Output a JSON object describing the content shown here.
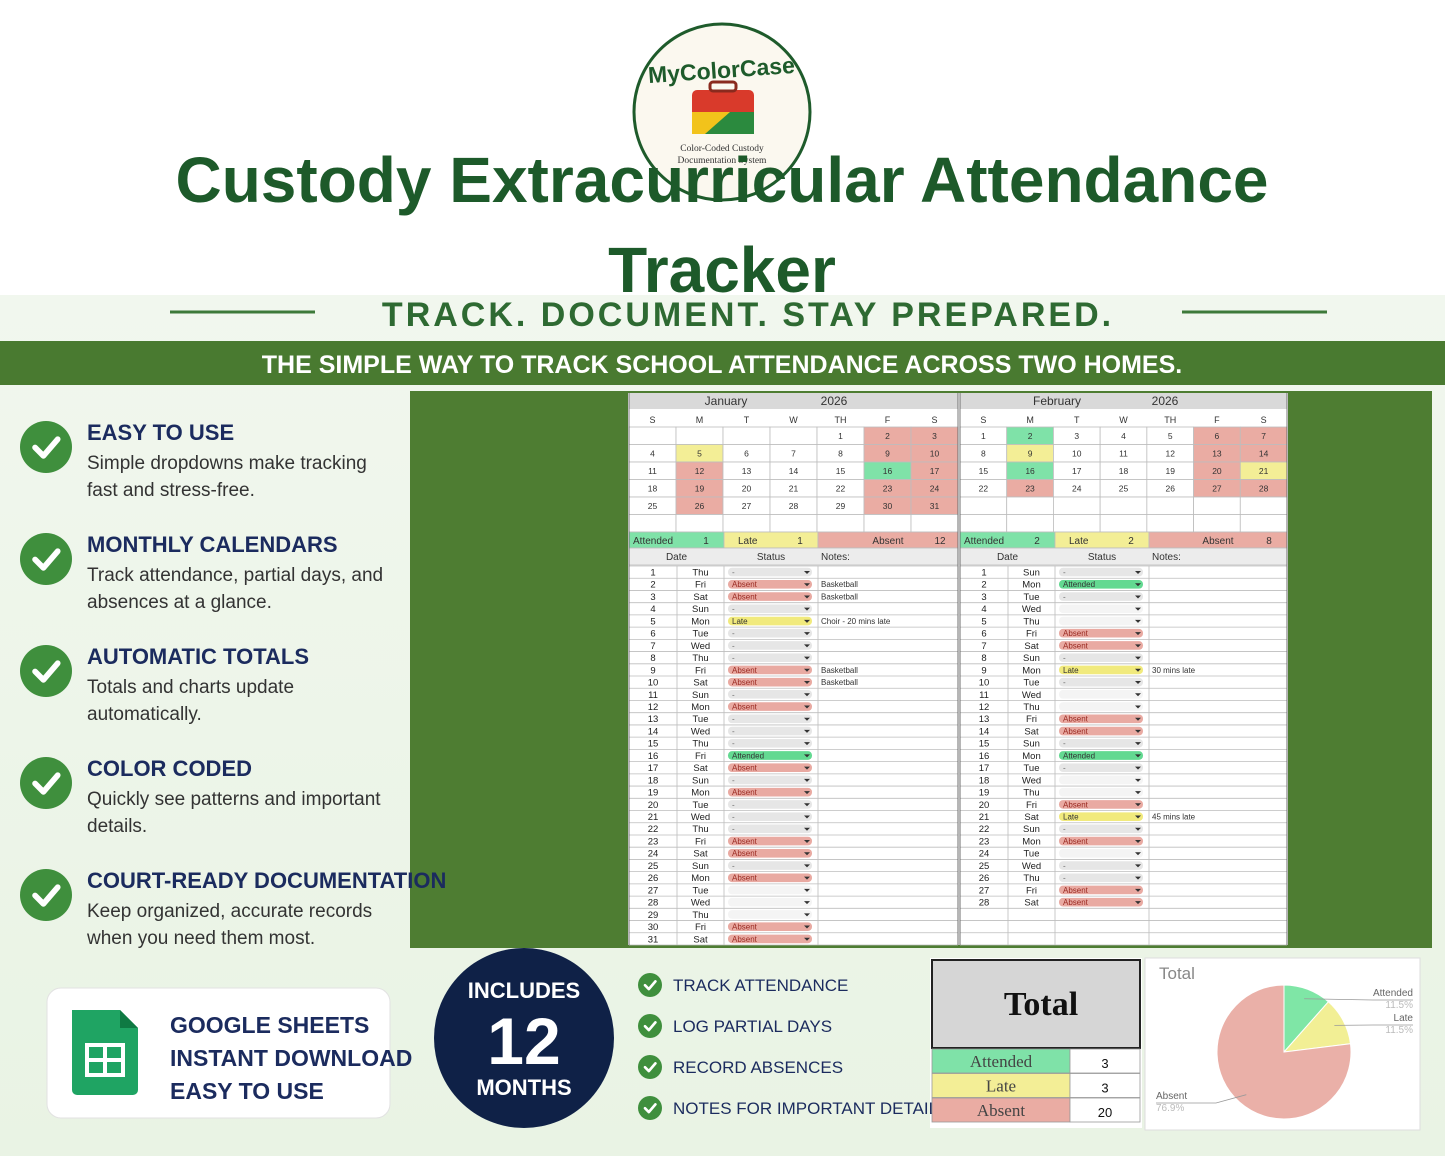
{
  "logo": {
    "brand": "MyColorCase",
    "tagline": [
      "Color-Coded Custody",
      "Documentation System"
    ]
  },
  "title": "Custody Extracurricular Attendance Tracker",
  "slogan": "TRACK. DOCUMENT. STAY PREPARED.",
  "banner": "THE SIMPLE WAY TO TRACK SCHOOL ATTENDANCE ACROSS TWO HOMES.",
  "features": [
    {
      "heading": "EASY TO USE",
      "text": "Simple dropdowns make tracking fast and stress-free."
    },
    {
      "heading": "MONTHLY CALENDARS",
      "text": "Track attendance, partial days, and absences at a glance."
    },
    {
      "heading": "AUTOMATIC TOTALS",
      "text": "Totals and charts update automatically."
    },
    {
      "heading": "COLOR CODED",
      "text": "Quickly see patterns and important details."
    },
    {
      "heading": "COURT-READY DOCUMENTATION",
      "text": "Keep organized, accurate records when you need them most."
    }
  ],
  "badge": {
    "lines": [
      "GOOGLE SHEETS",
      "INSTANT DOWNLOAD",
      "EASY TO USE"
    ]
  },
  "includes": {
    "top": "INCLUDES",
    "number": "12",
    "bottom": "MONTHS"
  },
  "checklist": [
    "TRACK ATTENDANCE",
    "LOG PARTIAL DAYS",
    "RECORD ABSENCES",
    "NOTES FOR IMPORTANT DETAILS"
  ],
  "sheet": {
    "weekdays": [
      "S",
      "M",
      "T",
      "W",
      "TH",
      "F",
      "S"
    ],
    "log_headers": [
      "Date",
      "Status",
      "Notes:"
    ],
    "calendar_colors": {
      "Absent": "#eaaca3",
      "Late": "#f3ee96",
      "Attended": "#7fe2a8"
    },
    "chip_colors": {
      "Absent": "#e9aaa2",
      "Late": "#f1ea7d",
      "Attended": "#63d991",
      "-": "#e6e6e6"
    },
    "months": [
      {
        "name": "January",
        "year": "2026",
        "weeks": [
          [
            null,
            null,
            null,
            null,
            1,
            2,
            3
          ],
          [
            4,
            5,
            6,
            7,
            8,
            9,
            10
          ],
          [
            11,
            12,
            13,
            14,
            15,
            16,
            17
          ],
          [
            18,
            19,
            20,
            21,
            22,
            23,
            24
          ],
          [
            25,
            26,
            27,
            28,
            29,
            30,
            31
          ],
          [
            null,
            null,
            null,
            null,
            null,
            null,
            null
          ]
        ],
        "totals": [
          {
            "label": "Attended",
            "value": 1
          },
          {
            "label": "Late",
            "value": 1
          },
          {
            "label": "Absent",
            "value": 12
          }
        ],
        "log": [
          [
            1,
            "Thu",
            "-",
            null
          ],
          [
            2,
            "Fri",
            "Absent",
            "Basketball"
          ],
          [
            3,
            "Sat",
            "Absent",
            "Basketball"
          ],
          [
            4,
            "Sun",
            "-",
            null
          ],
          [
            5,
            "Mon",
            "Late",
            "Choir - 20 mins late"
          ],
          [
            6,
            "Tue",
            "-",
            null
          ],
          [
            7,
            "Wed",
            "-",
            null
          ],
          [
            8,
            "Thu",
            "-",
            null
          ],
          [
            9,
            "Fri",
            "Absent",
            "Basketball"
          ],
          [
            10,
            "Sat",
            "Absent",
            "Basketball"
          ],
          [
            11,
            "Sun",
            "-",
            null
          ],
          [
            12,
            "Mon",
            "Absent",
            null
          ],
          [
            13,
            "Tue",
            "-",
            null
          ],
          [
            14,
            "Wed",
            "-",
            null
          ],
          [
            15,
            "Thu",
            "-",
            null
          ],
          [
            16,
            "Fri",
            "Attended",
            null
          ],
          [
            17,
            "Sat",
            "Absent",
            null
          ],
          [
            18,
            "Sun",
            "-",
            null
          ],
          [
            19,
            "Mon",
            "Absent",
            null
          ],
          [
            20,
            "Tue",
            "-",
            null
          ],
          [
            21,
            "Wed",
            "-",
            null
          ],
          [
            22,
            "Thu",
            "-",
            null
          ],
          [
            23,
            "Fri",
            "Absent",
            null
          ],
          [
            24,
            "Sat",
            "Absent",
            null
          ],
          [
            25,
            "Sun",
            "-",
            null
          ],
          [
            26,
            "Mon",
            "Absent",
            null
          ],
          [
            27,
            "Tue",
            null,
            null
          ],
          [
            28,
            "Wed",
            null,
            null
          ],
          [
            29,
            "Thu",
            null,
            null
          ],
          [
            30,
            "Fri",
            "Absent",
            null
          ],
          [
            31,
            "Sat",
            "Absent",
            null
          ]
        ]
      },
      {
        "name": "February",
        "year": "2026",
        "weeks": [
          [
            1,
            2,
            3,
            4,
            5,
            6,
            7
          ],
          [
            8,
            9,
            10,
            11,
            12,
            13,
            14
          ],
          [
            15,
            16,
            17,
            18,
            19,
            20,
            21
          ],
          [
            22,
            23,
            24,
            25,
            26,
            27,
            28
          ],
          [
            null,
            null,
            null,
            null,
            null,
            null,
            null
          ],
          [
            null,
            null,
            null,
            null,
            null,
            null,
            null
          ]
        ],
        "totals": [
          {
            "label": "Attended",
            "value": 2
          },
          {
            "label": "Late",
            "value": 2
          },
          {
            "label": "Absent",
            "value": 8
          }
        ],
        "log": [
          [
            1,
            "Sun",
            "-",
            null
          ],
          [
            2,
            "Mon",
            "Attended",
            null
          ],
          [
            3,
            "Tue",
            "-",
            null
          ],
          [
            4,
            "Wed",
            null,
            null
          ],
          [
            5,
            "Thu",
            null,
            null
          ],
          [
            6,
            "Fri",
            "Absent",
            null
          ],
          [
            7,
            "Sat",
            "Absent",
            null
          ],
          [
            8,
            "Sun",
            "-",
            null
          ],
          [
            9,
            "Mon",
            "Late",
            "30 mins late"
          ],
          [
            10,
            "Tue",
            "-",
            null
          ],
          [
            11,
            "Wed",
            null,
            null
          ],
          [
            12,
            "Thu",
            null,
            null
          ],
          [
            13,
            "Fri",
            "Absent",
            null
          ],
          [
            14,
            "Sat",
            "Absent",
            null
          ],
          [
            15,
            "Sun",
            "-",
            null
          ],
          [
            16,
            "Mon",
            "Attended",
            null
          ],
          [
            17,
            "Tue",
            "-",
            null
          ],
          [
            18,
            "Wed",
            null,
            null
          ],
          [
            19,
            "Thu",
            null,
            null
          ],
          [
            20,
            "Fri",
            "Absent",
            null
          ],
          [
            21,
            "Sat",
            "Late",
            "45 mins late"
          ],
          [
            22,
            "Sun",
            "-",
            null
          ],
          [
            23,
            "Mon",
            "Absent",
            null
          ],
          [
            24,
            "Tue",
            null,
            null
          ],
          [
            25,
            "Wed",
            "-",
            null
          ],
          [
            26,
            "Thu",
            "-",
            null
          ],
          [
            27,
            "Fri",
            "Absent",
            null
          ],
          [
            28,
            "Sat",
            "Absent",
            null
          ]
        ]
      }
    ]
  },
  "totals_table": {
    "title": "Total",
    "rows": [
      {
        "label": "Attended",
        "value": 3,
        "color": "#7fe2a8"
      },
      {
        "label": "Late",
        "value": 3,
        "color": "#f3ee96"
      },
      {
        "label": "Absent",
        "value": 20,
        "color": "#eaaca3"
      }
    ]
  },
  "chart_data": {
    "type": "pie",
    "title": "Total",
    "categories": [
      "Attended",
      "Late",
      "Absent"
    ],
    "values": [
      11.5,
      11.5,
      76.9
    ],
    "value_labels": [
      "11.5%",
      "11.5%",
      "76.9%"
    ],
    "colors": [
      "#7fe6a6",
      "#f2ef95",
      "#eab0a8"
    ]
  }
}
